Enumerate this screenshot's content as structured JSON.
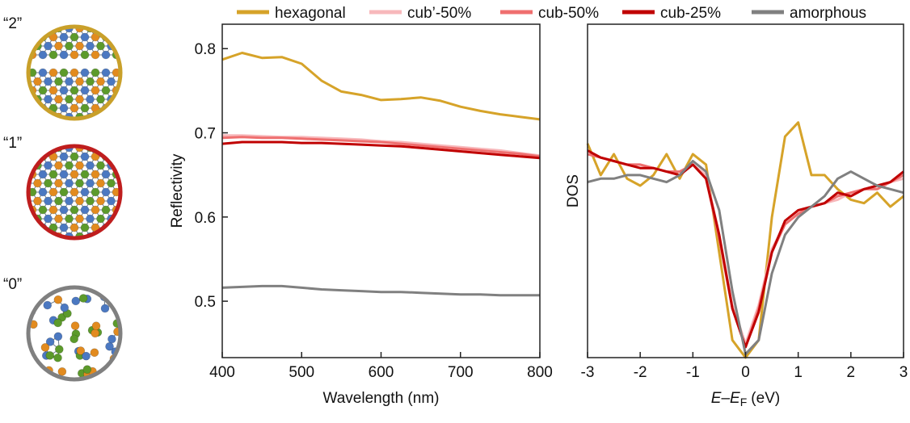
{
  "structures": {
    "labels": [
      "“2”",
      "“1”",
      "“0”"
    ]
  },
  "chart_data": [
    {
      "type": "line",
      "y_label": "Reflectivity",
      "x_label": "Wavelength (nm)",
      "x": [
        400,
        425,
        450,
        475,
        500,
        525,
        550,
        575,
        600,
        625,
        650,
        675,
        700,
        725,
        750,
        775,
        800
      ],
      "xlim": [
        400,
        800
      ],
      "xticks": [
        400,
        500,
        600,
        700,
        800
      ],
      "ylim": [
        0.433,
        0.829
      ],
      "yticks": [
        0.5,
        0.6,
        0.7,
        0.8
      ],
      "series": [
        {
          "name": "hexagonal",
          "color": "#d6a329",
          "values": [
            0.787,
            0.795,
            0.789,
            0.79,
            0.782,
            0.762,
            0.749,
            0.745,
            0.739,
            0.74,
            0.742,
            0.738,
            0.731,
            0.726,
            0.722,
            0.719,
            0.716
          ]
        },
        {
          "name": "cub’-50%",
          "color": "#f7b8bb",
          "values": [
            0.697,
            0.697,
            0.696,
            0.695,
            0.695,
            0.694,
            0.693,
            0.692,
            0.69,
            0.689,
            0.687,
            0.685,
            0.683,
            0.681,
            0.679,
            0.676,
            0.673
          ]
        },
        {
          "name": "cub-50%",
          "color": "#ef6f6f",
          "values": [
            0.694,
            0.695,
            0.694,
            0.694,
            0.693,
            0.692,
            0.691,
            0.69,
            0.689,
            0.687,
            0.685,
            0.683,
            0.681,
            0.679,
            0.677,
            0.675,
            0.672
          ]
        },
        {
          "name": "cub-25%",
          "color": "#c00000",
          "values": [
            0.687,
            0.689,
            0.689,
            0.689,
            0.688,
            0.688,
            0.687,
            0.686,
            0.685,
            0.684,
            0.682,
            0.68,
            0.678,
            0.676,
            0.674,
            0.672,
            0.67
          ]
        },
        {
          "name": "amorphous",
          "color": "#808080",
          "values": [
            0.516,
            0.517,
            0.518,
            0.518,
            0.516,
            0.514,
            0.513,
            0.512,
            0.511,
            0.511,
            0.51,
            0.509,
            0.508,
            0.508,
            0.507,
            0.507,
            0.507
          ]
        }
      ]
    },
    {
      "type": "line",
      "y_label": "DOS",
      "x_label": [
        "E",
        "–",
        "E",
        "F",
        "(eV)"
      ],
      "x": [
        -3,
        -2.75,
        -2.5,
        -2.25,
        -2,
        -1.75,
        -1.5,
        -1.25,
        -1,
        -0.75,
        -0.5,
        -0.25,
        0,
        0.25,
        0.5,
        0.75,
        1,
        1.25,
        1.5,
        1.75,
        2,
        2.25,
        2.5,
        2.75,
        3
      ],
      "xlim": [
        -3,
        3
      ],
      "xticks": [
        -3,
        -2,
        -1,
        0,
        1,
        2,
        3
      ],
      "ylim": [
        0,
        95
      ],
      "series": [
        {
          "color": "#d6a329",
          "values": [
            61,
            52,
            58,
            51,
            49,
            52,
            58,
            51,
            58,
            55,
            30,
            5,
            0,
            5,
            40,
            63,
            67,
            52,
            52,
            48,
            45,
            44,
            47,
            43,
            46
          ]
        },
        {
          "color": "#f7b8bb",
          "values": [
            58,
            57,
            56,
            55,
            55,
            54,
            53,
            53,
            55,
            52,
            35,
            15,
            4,
            15,
            31,
            38,
            41,
            43,
            44,
            45,
            47,
            48,
            49,
            50,
            51
          ]
        },
        {
          "color": "#ef6f6f",
          "values": [
            58,
            57,
            56,
            55,
            55,
            54,
            53,
            53,
            55,
            51,
            34,
            14,
            3,
            14,
            30,
            38,
            41,
            43,
            44,
            46,
            47,
            48,
            48,
            50,
            52
          ]
        },
        {
          "color": "#c00000",
          "values": [
            59,
            57,
            56,
            55,
            54,
            54,
            53,
            52,
            55,
            51,
            35,
            14,
            3,
            13,
            30,
            39,
            42,
            43,
            44,
            47,
            46,
            48,
            49,
            50,
            53
          ]
        },
        {
          "color": "#808080",
          "values": [
            50,
            51,
            51,
            52,
            52,
            51,
            50,
            52,
            56,
            53,
            42,
            19,
            1,
            5,
            24,
            35,
            40,
            43,
            46,
            51,
            53,
            51,
            49,
            48,
            47
          ]
        }
      ]
    }
  ]
}
